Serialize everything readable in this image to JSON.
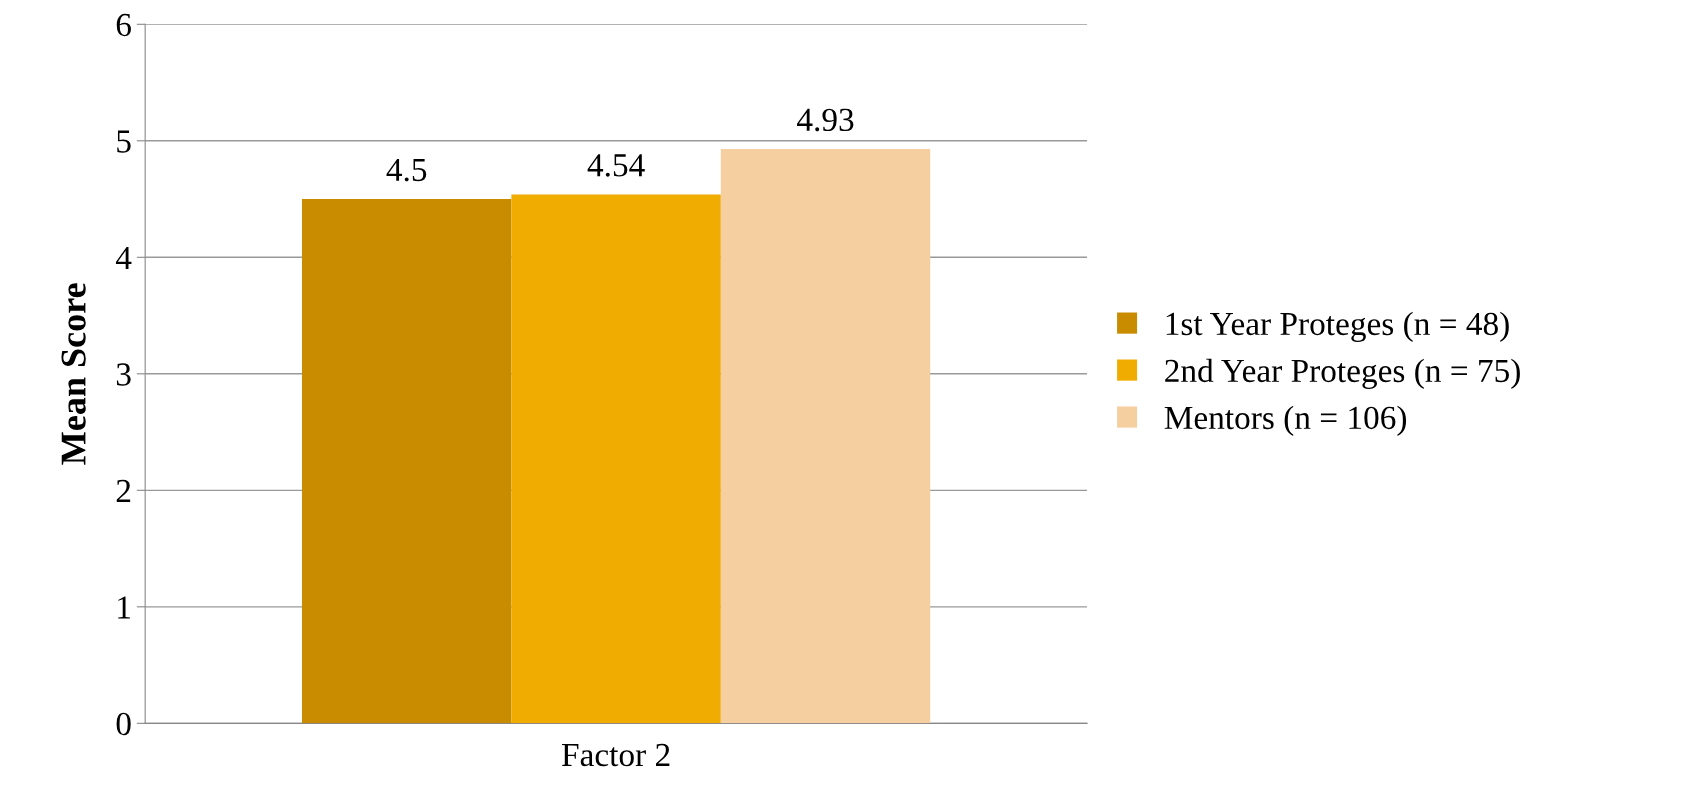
{
  "chart_data": {
    "type": "bar",
    "ylabel": "Mean Score",
    "categories": [
      "Factor 2"
    ],
    "series": [
      {
        "name": "1st Year Proteges (n = 48)",
        "color": "#c98c00",
        "values": [
          4.5
        ]
      },
      {
        "name": "2nd Year Proteges (n = 75)",
        "color": "#f0ac00",
        "values": [
          4.54
        ]
      },
      {
        "name": "Mentors (n = 106)",
        "color": "#f5cfa0",
        "values": [
          4.93
        ]
      }
    ],
    "ylim": [
      0,
      6
    ],
    "yticks": [
      0,
      1,
      2,
      3,
      4,
      5,
      6
    ],
    "grid": "y",
    "legend": "right",
    "data_labels": true
  }
}
